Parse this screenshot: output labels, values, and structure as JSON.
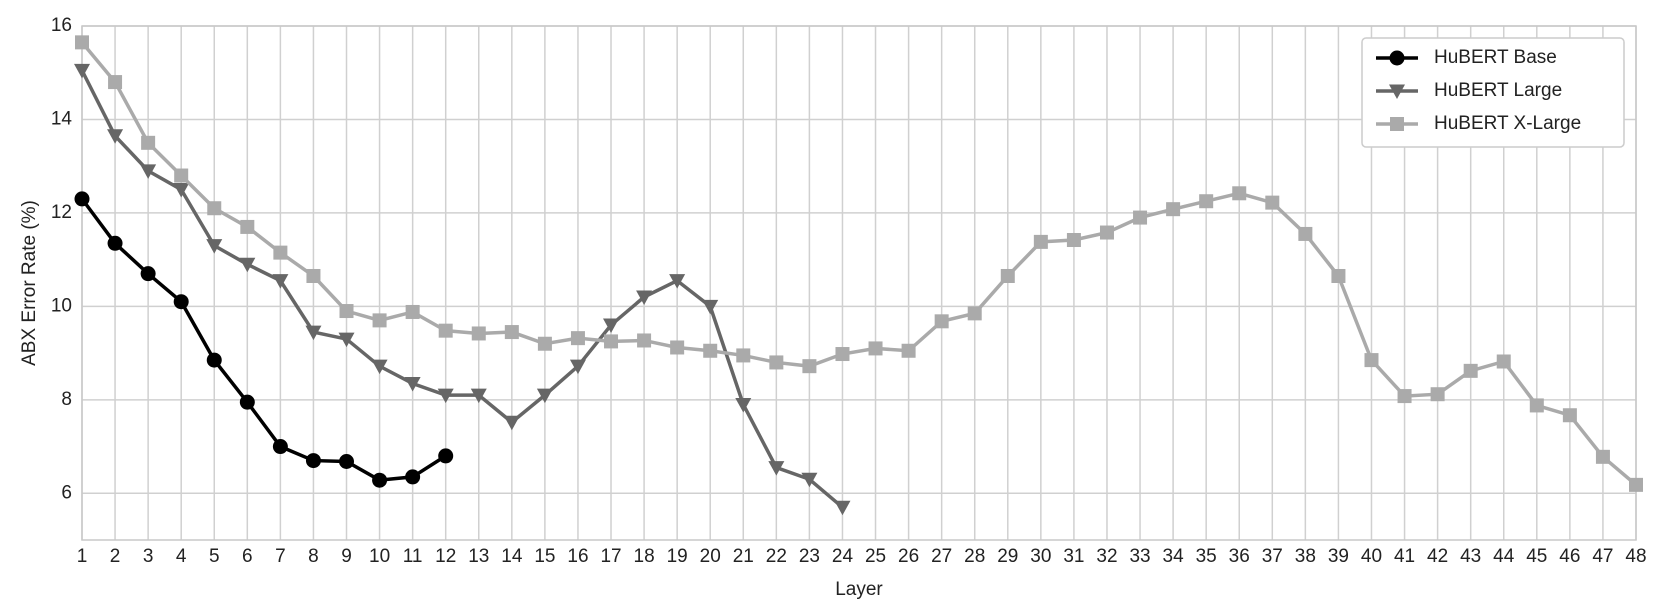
{
  "chart_data": {
    "type": "line",
    "xlabel": "Layer",
    "ylabel": "ABX Error Rate (%)",
    "x": [
      1,
      2,
      3,
      4,
      5,
      6,
      7,
      8,
      9,
      10,
      11,
      12,
      13,
      14,
      15,
      16,
      17,
      18,
      19,
      20,
      21,
      22,
      23,
      24,
      25,
      26,
      27,
      28,
      29,
      30,
      31,
      32,
      33,
      34,
      35,
      36,
      37,
      38,
      39,
      40,
      41,
      42,
      43,
      44,
      45,
      46,
      47,
      48
    ],
    "xlim": [
      1,
      48
    ],
    "xticks": [
      1,
      2,
      3,
      4,
      5,
      6,
      7,
      8,
      9,
      10,
      11,
      12,
      13,
      14,
      15,
      16,
      17,
      18,
      19,
      20,
      21,
      22,
      23,
      24,
      25,
      26,
      27,
      28,
      29,
      30,
      31,
      32,
      33,
      34,
      35,
      36,
      37,
      38,
      39,
      40,
      41,
      42,
      43,
      44,
      45,
      46,
      47,
      48
    ],
    "ylim": [
      5,
      16
    ],
    "yticks": [
      6,
      8,
      10,
      12,
      14,
      16
    ],
    "grid": true,
    "legend": "upper right",
    "series": [
      {
        "name": "HuBERT Base",
        "color": "#000000",
        "marker": "circle",
        "values": [
          12.3,
          11.35,
          10.7,
          10.1,
          8.85,
          7.95,
          7.0,
          6.7,
          6.68,
          6.28,
          6.35,
          6.8,
          null,
          null,
          null,
          null,
          null,
          null,
          null,
          null,
          null,
          null,
          null,
          null,
          null,
          null,
          null,
          null,
          null,
          null,
          null,
          null,
          null,
          null,
          null,
          null,
          null,
          null,
          null,
          null,
          null,
          null,
          null,
          null,
          null,
          null,
          null,
          null
        ]
      },
      {
        "name": "HuBERT Large",
        "color": "#666666",
        "marker": "triangle-down",
        "values": [
          15.05,
          13.65,
          12.9,
          12.5,
          11.3,
          10.9,
          10.55,
          9.45,
          9.3,
          8.72,
          8.35,
          8.1,
          8.1,
          7.52,
          8.1,
          8.72,
          9.6,
          10.2,
          10.55,
          10.0,
          7.9,
          6.55,
          6.3,
          5.7,
          null,
          null,
          null,
          null,
          null,
          null,
          null,
          null,
          null,
          null,
          null,
          null,
          null,
          null,
          null,
          null,
          null,
          null,
          null,
          null,
          null,
          null,
          null,
          null
        ]
      },
      {
        "name": "HuBERT X-Large",
        "color": "#aaaaaa",
        "marker": "square",
        "values": [
          15.65,
          14.8,
          13.5,
          12.8,
          12.1,
          11.7,
          11.15,
          10.65,
          9.9,
          9.7,
          9.88,
          9.48,
          9.42,
          9.45,
          9.2,
          9.32,
          9.25,
          9.27,
          9.12,
          9.05,
          8.95,
          8.8,
          8.72,
          8.98,
          9.1,
          9.05,
          9.68,
          9.85,
          10.65,
          11.38,
          11.42,
          11.58,
          11.9,
          12.08,
          12.25,
          12.42,
          12.22,
          11.55,
          10.65,
          8.85,
          8.08,
          8.12,
          8.62,
          8.82,
          7.88,
          7.67,
          6.78,
          6.18
        ]
      }
    ]
  }
}
